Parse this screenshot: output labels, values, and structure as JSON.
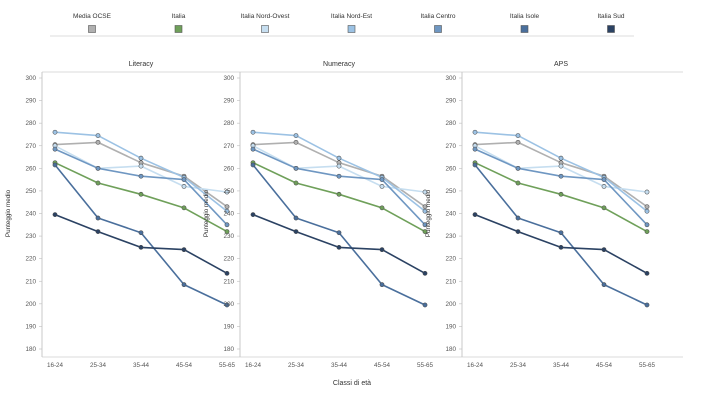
{
  "chart_data": {
    "type": "line",
    "xlabel": "Classi di età",
    "ylabel": "Punteggio medio",
    "categories": [
      "16-24",
      "25-34",
      "35-44",
      "45-54",
      "55-65"
    ],
    "ylim": [
      180,
      300
    ],
    "yticks": [
      180,
      190,
      200,
      210,
      220,
      230,
      240,
      250,
      260,
      270,
      280,
      290,
      300
    ],
    "grid": false,
    "legend_position": "top",
    "legend": [
      {
        "name": "Media OCSE",
        "color": "#b0b0b0"
      },
      {
        "name": "Italia",
        "color": "#6fa05a"
      },
      {
        "name": "Italia Nord-Ovest",
        "color": "#c6def0"
      },
      {
        "name": "Italia Nord-Est",
        "color": "#9cc2e4"
      },
      {
        "name": "Italia Centro",
        "color": "#6f97c2"
      },
      {
        "name": "Italia Isole",
        "color": "#4a6f9c"
      },
      {
        "name": "Italia Sud",
        "color": "#2b4263"
      }
    ],
    "panels": [
      {
        "title": "Literacy",
        "series": [
          {
            "name": "Media OCSE",
            "color": "#b0b0b0",
            "values": [
              270.5,
              271.5,
              262.5,
              256.5,
              243
            ]
          },
          {
            "name": "Italia",
            "color": "#6fa05a",
            "values": [
              262.5,
              253.5,
              248.5,
              242.5,
              232
            ]
          },
          {
            "name": "Italia Nord-Ovest",
            "color": "#c6def0",
            "values": [
              270,
              260,
              261,
              252,
              249.5
            ]
          },
          {
            "name": "Italia Nord-Est",
            "color": "#9cc2e4",
            "values": [
              276,
              274.5,
              264.5,
              256,
              241
            ]
          },
          {
            "name": "Italia Centro",
            "color": "#6f97c2",
            "values": [
              268.5,
              260,
              256.5,
              255,
              235
            ]
          },
          {
            "name": "Italia Isole",
            "color": "#4a6f9c",
            "values": [
              261.5,
              238,
              231.5,
              208.5,
              199.5
            ]
          },
          {
            "name": "Italia Sud",
            "color": "#2b4263",
            "values": [
              239.5,
              232,
              225,
              224,
              213.5
            ]
          }
        ]
      },
      {
        "title": "Numeracy",
        "series": [
          {
            "name": "Media OCSE",
            "color": "#b0b0b0",
            "values": [
              270.5,
              271.5,
              262.5,
              256.5,
              243
            ]
          },
          {
            "name": "Italia",
            "color": "#6fa05a",
            "values": [
              262.5,
              253.5,
              248.5,
              242.5,
              232
            ]
          },
          {
            "name": "Italia Nord-Ovest",
            "color": "#c6def0",
            "values": [
              270,
              260,
              261,
              252,
              249.5
            ]
          },
          {
            "name": "Italia Nord-Est",
            "color": "#9cc2e4",
            "values": [
              276,
              274.5,
              264.5,
              256,
              241
            ]
          },
          {
            "name": "Italia Centro",
            "color": "#6f97c2",
            "values": [
              268.5,
              260,
              256.5,
              255,
              235
            ]
          },
          {
            "name": "Italia Isole",
            "color": "#4a6f9c",
            "values": [
              261.5,
              238,
              231.5,
              208.5,
              199.5
            ]
          },
          {
            "name": "Italia Sud",
            "color": "#2b4263",
            "values": [
              239.5,
              232,
              225,
              224,
              213.5
            ]
          }
        ]
      },
      {
        "title": "APS",
        "series": [
          {
            "name": "Media OCSE",
            "color": "#b0b0b0",
            "values": [
              270.5,
              271.5,
              262.5,
              256.5,
              243
            ]
          },
          {
            "name": "Italia",
            "color": "#6fa05a",
            "values": [
              262.5,
              253.5,
              248.5,
              242.5,
              232
            ]
          },
          {
            "name": "Italia Nord-Ovest",
            "color": "#c6def0",
            "values": [
              270,
              260,
              261,
              252,
              249.5
            ]
          },
          {
            "name": "Italia Nord-Est",
            "color": "#9cc2e4",
            "values": [
              276,
              274.5,
              264.5,
              256,
              241
            ]
          },
          {
            "name": "Italia Centro",
            "color": "#6f97c2",
            "values": [
              268.5,
              260,
              256.5,
              255,
              235
            ]
          },
          {
            "name": "Italia Isole",
            "color": "#4a6f9c",
            "values": [
              261.5,
              238,
              231.5,
              208.5,
              199.5
            ]
          },
          {
            "name": "Italia Sud",
            "color": "#2b4263",
            "values": [
              239.5,
              232,
              225,
              224,
              213.5
            ]
          }
        ]
      }
    ]
  }
}
